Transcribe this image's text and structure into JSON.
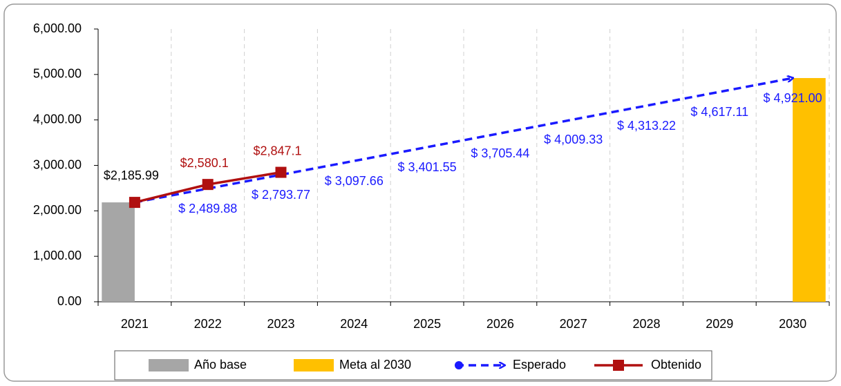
{
  "chart_data": {
    "type": "bar",
    "categories": [
      "2021",
      "2022",
      "2023",
      "2024",
      "2025",
      "2026",
      "2027",
      "2028",
      "2029",
      "2030"
    ],
    "ylim": [
      0,
      6000
    ],
    "yticks": [
      {
        "value": 0,
        "label": "0.00"
      },
      {
        "value": 1000,
        "label": "1,000.00"
      },
      {
        "value": 2000,
        "label": "2,000.00"
      },
      {
        "value": 3000,
        "label": "3,000.00"
      },
      {
        "value": 4000,
        "label": "4,000.00"
      },
      {
        "value": 5000,
        "label": "5,000.00"
      },
      {
        "value": 6000,
        "label": "6,000.00"
      }
    ],
    "grid": true,
    "legend": "bottom",
    "series": [
      {
        "name": "Año base",
        "type": "bar",
        "color": "#a6a6a6",
        "values": [
          2185.99,
          null,
          null,
          null,
          null,
          null,
          null,
          null,
          null,
          null
        ],
        "value_labels": [
          "$2,185.99",
          null,
          null,
          null,
          null,
          null,
          null,
          null,
          null,
          null
        ]
      },
      {
        "name": "Meta al 2030",
        "type": "bar",
        "color": "#ffc000",
        "values": [
          null,
          null,
          null,
          null,
          null,
          null,
          null,
          null,
          null,
          4921.0
        ],
        "value_labels": [
          null,
          null,
          null,
          null,
          null,
          null,
          null,
          null,
          null,
          "$ 4,921.00"
        ]
      },
      {
        "name": "Esperado",
        "type": "line",
        "color": "#1a1aff",
        "dashed": true,
        "values": [
          2185.99,
          2489.88,
          2793.77,
          3097.66,
          3401.55,
          3705.44,
          4009.33,
          4313.22,
          4617.11,
          4921.0
        ],
        "value_labels": [
          null,
          "$ 2,489.88",
          "$ 2,793.77",
          "$ 3,097.66",
          "$ 3,401.55",
          "$ 3,705.44",
          "$ 4,009.33",
          "$ 4,313.22",
          "$ 4,617.11",
          null
        ]
      },
      {
        "name": "Obtenido",
        "type": "line",
        "color": "#b01010",
        "values": [
          2185.99,
          2580.1,
          2847.1,
          null,
          null,
          null,
          null,
          null,
          null,
          null
        ],
        "value_labels": [
          null,
          "$2,580.1",
          "$2,847.1",
          null,
          null,
          null,
          null,
          null,
          null,
          null
        ]
      }
    ]
  }
}
